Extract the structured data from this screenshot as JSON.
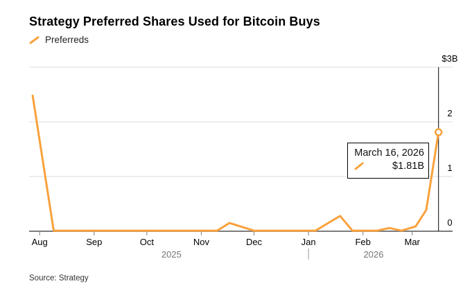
{
  "legend": {
    "label": "Preferreds"
  },
  "tooltip": {
    "date": "March 16, 2026",
    "value": "$1.81B"
  },
  "footer": {
    "source": "Source: Strategy"
  },
  "chart_data": {
    "type": "line",
    "title": "Strategy Preferred Shares Used for Bitcoin Buys",
    "ylabel": "",
    "xlabel": "",
    "unit": "billions USD",
    "ylim": [
      0,
      3
    ],
    "grid": "horizontal",
    "legend_position": "top-left",
    "x_domain": [
      "2025-07-26",
      "2026-03-24"
    ],
    "y_ticks": [
      {
        "value": 3,
        "label": "$3B"
      },
      {
        "value": 2,
        "label": "2"
      },
      {
        "value": 1,
        "label": "1"
      },
      {
        "value": 0,
        "label": "0"
      }
    ],
    "x_ticks": [
      {
        "date": "2025-08-01",
        "label": "Aug"
      },
      {
        "date": "2025-09-01",
        "label": "Sep"
      },
      {
        "date": "2025-10-01",
        "label": "Oct"
      },
      {
        "date": "2025-11-01",
        "label": "Nov"
      },
      {
        "date": "2025-12-01",
        "label": "Dec"
      },
      {
        "date": "2026-01-01",
        "label": "Jan"
      },
      {
        "date": "2026-02-01",
        "label": "Feb"
      },
      {
        "date": "2026-03-01",
        "label": "Mar"
      }
    ],
    "year_labels": [
      {
        "date": "2025-10-15",
        "label": "2025"
      },
      {
        "date": "2026-02-07",
        "label": "2026"
      }
    ],
    "year_divider_date": "2026-01-01",
    "series": [
      {
        "name": "Preferreds",
        "color": "#F9A13C",
        "points": [
          {
            "date": "2025-07-28",
            "value": 2.48
          },
          {
            "date": "2025-08-09",
            "value": 0.01
          },
          {
            "date": "2025-09-01",
            "value": 0.01
          },
          {
            "date": "2025-10-01",
            "value": 0.01
          },
          {
            "date": "2025-11-10",
            "value": 0.01
          },
          {
            "date": "2025-11-17",
            "value": 0.15
          },
          {
            "date": "2025-12-01",
            "value": 0.01
          },
          {
            "date": "2026-01-05",
            "value": 0.01
          },
          {
            "date": "2026-01-19",
            "value": 0.28
          },
          {
            "date": "2026-01-26",
            "value": 0.01
          },
          {
            "date": "2026-02-09",
            "value": 0.01
          },
          {
            "date": "2026-02-16",
            "value": 0.06
          },
          {
            "date": "2026-02-23",
            "value": 0.01
          },
          {
            "date": "2026-03-03",
            "value": 0.09
          },
          {
            "date": "2026-03-09",
            "value": 0.39
          },
          {
            "date": "2026-03-16",
            "value": 1.81
          }
        ]
      }
    ],
    "highlight": {
      "date": "2026-03-16",
      "value": 1.81
    },
    "colors": {
      "line": "#F9A13C",
      "grid": "#DCDCDC",
      "axis": "#7C7C7C",
      "tick_label": "#000000",
      "year_label": "#767676",
      "year_divider": "#999999",
      "crosshair": "#000000",
      "marker_fill": "#FFFFFF"
    }
  }
}
